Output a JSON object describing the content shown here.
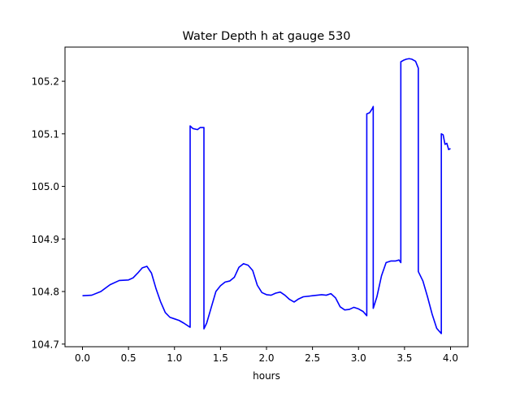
{
  "chart_data": {
    "type": "line",
    "title": "Water Depth h at gauge 530",
    "xlabel": "hours",
    "ylabel": "",
    "xlim": [
      -0.19,
      4.19
    ],
    "ylim": [
      104.695,
      105.265
    ],
    "xticks": [
      0.0,
      0.5,
      1.0,
      1.5,
      2.0,
      2.5,
      3.0,
      3.5,
      4.0
    ],
    "xtick_labels": [
      "0.0",
      "0.5",
      "1.0",
      "1.5",
      "2.0",
      "2.5",
      "3.0",
      "3.5",
      "4.0"
    ],
    "yticks": [
      104.7,
      104.8,
      104.9,
      105.0,
      105.1,
      105.2
    ],
    "ytick_labels": [
      "104.7",
      "104.8",
      "104.9",
      "105.0",
      "105.1",
      "105.2"
    ],
    "grid": false,
    "legend": "none",
    "series": [
      {
        "color": "#0000ff",
        "x": [
          0.0,
          0.1,
          0.2,
          0.3,
          0.4,
          0.5,
          0.55,
          0.6,
          0.65,
          0.7,
          0.75,
          0.8,
          0.85,
          0.9,
          0.95,
          1.0,
          1.05,
          1.1,
          1.17,
          1.17,
          1.2,
          1.25,
          1.28,
          1.32,
          1.32,
          1.35,
          1.4,
          1.45,
          1.5,
          1.55,
          1.6,
          1.65,
          1.7,
          1.75,
          1.8,
          1.85,
          1.9,
          1.95,
          2.0,
          2.05,
          2.1,
          2.15,
          2.2,
          2.25,
          2.3,
          2.35,
          2.4,
          2.5,
          2.6,
          2.65,
          2.7,
          2.75,
          2.8,
          2.85,
          2.9,
          2.95,
          3.0,
          3.05,
          3.09,
          3.09,
          3.12,
          3.15,
          3.16,
          3.16,
          3.2,
          3.25,
          3.3,
          3.35,
          3.4,
          3.44,
          3.46,
          3.46,
          3.49,
          3.52,
          3.55,
          3.58,
          3.6,
          3.62,
          3.65,
          3.65,
          3.7,
          3.75,
          3.8,
          3.85,
          3.9,
          3.9,
          3.92,
          3.94,
          3.96,
          3.98,
          4.0
        ],
        "y": [
          104.792,
          104.793,
          104.8,
          104.813,
          104.821,
          104.822,
          104.826,
          104.835,
          104.845,
          104.848,
          104.835,
          104.805,
          104.78,
          104.76,
          104.751,
          104.748,
          104.745,
          104.74,
          104.732,
          105.115,
          105.11,
          105.108,
          105.112,
          105.112,
          104.729,
          104.74,
          104.77,
          104.8,
          104.811,
          104.818,
          104.82,
          104.827,
          104.846,
          104.853,
          104.85,
          104.84,
          104.812,
          104.798,
          104.794,
          104.793,
          104.797,
          104.799,
          104.793,
          104.785,
          104.78,
          104.786,
          104.79,
          104.792,
          104.794,
          104.793,
          104.796,
          104.788,
          104.771,
          104.765,
          104.766,
          104.77,
          104.767,
          104.762,
          104.754,
          105.138,
          105.14,
          105.148,
          105.152,
          104.768,
          104.79,
          104.83,
          104.855,
          104.858,
          104.858,
          104.86,
          104.855,
          105.237,
          105.24,
          105.242,
          105.243,
          105.242,
          105.24,
          105.238,
          105.225,
          104.838,
          104.82,
          104.79,
          104.757,
          104.73,
          104.72,
          105.1,
          105.098,
          105.08,
          105.082,
          105.07,
          105.072
        ]
      }
    ]
  }
}
